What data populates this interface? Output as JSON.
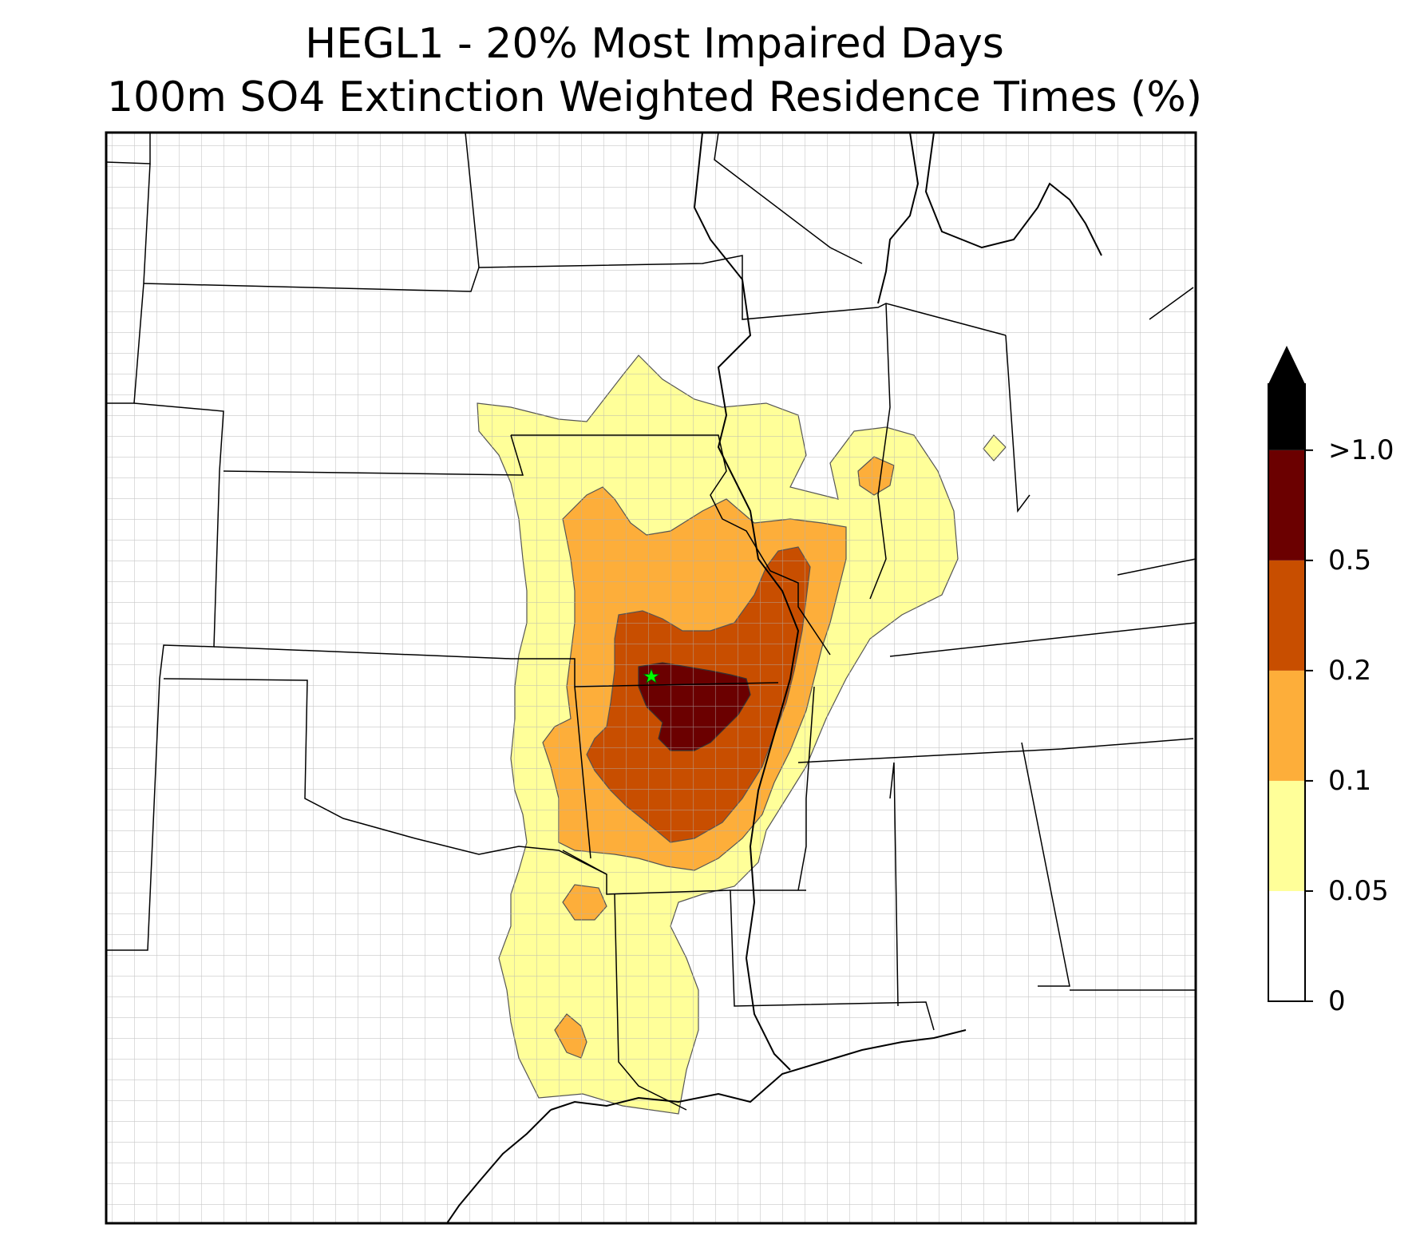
{
  "title": {
    "line1": "HEGL1 - 20% Most Impaired Days",
    "line2": "100m SO4 Extinction Weighted Residence Times (%)"
  },
  "colorbar": {
    "extend": "max",
    "levels": [
      {
        "label": "0",
        "value": 0,
        "color": "#ffffff"
      },
      {
        "label": "0.05",
        "value": 0.05,
        "color": "#ffff99"
      },
      {
        "label": "0.1",
        "value": 0.1,
        "color": "#fdae3a"
      },
      {
        "label": "0.2",
        "value": 0.2,
        "color": "#c84e00"
      },
      {
        "label": "0.5",
        "value": 0.5,
        "color": "#6b0000"
      },
      {
        "label": ">1.0",
        "value": 1.0,
        "color": "#000000"
      }
    ],
    "extend_color": "#000000"
  },
  "map": {
    "site_marker": {
      "name": "HEGL1",
      "symbol": "star",
      "color": "#00ff00"
    },
    "region": "Central United States",
    "boundary_color": "#000000",
    "county_color": "#a0a0a0"
  }
}
